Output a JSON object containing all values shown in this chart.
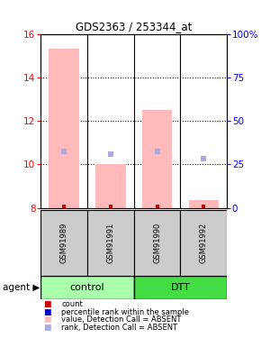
{
  "title": "GDS2363 / 253344_at",
  "samples": [
    "GSM91989",
    "GSM91991",
    "GSM91990",
    "GSM91992"
  ],
  "bar_color_absent": "#ffbbbb",
  "rank_color_absent": "#aaaadd",
  "count_color": "#cc0000",
  "rank_color": "#0000cc",
  "ylim_left": [
    8,
    16
  ],
  "ylim_right": [
    0,
    100
  ],
  "yticks_left": [
    8,
    10,
    12,
    14,
    16
  ],
  "yticks_right": [
    0,
    25,
    50,
    75,
    100
  ],
  "ytick_labels_right": [
    "0",
    "25",
    "50",
    "75",
    "100%"
  ],
  "bar_tops_absent": [
    15.3,
    10.0,
    12.5,
    8.35
  ],
  "rank_values_absent": [
    10.6,
    10.45,
    10.6,
    10.25
  ],
  "count_values": [
    8.08,
    8.08,
    8.08,
    8.08
  ],
  "sample_col_color": "#cccccc",
  "group_info": [
    {
      "start": 0,
      "end": 2,
      "label": "control",
      "color": "#aaffaa"
    },
    {
      "start": 2,
      "end": 4,
      "label": "DTT",
      "color": "#44dd44"
    }
  ],
  "legend_items": [
    {
      "color": "#cc0000",
      "label": "count"
    },
    {
      "color": "#0000cc",
      "label": "percentile rank within the sample"
    },
    {
      "color": "#ffbbbb",
      "label": "value, Detection Call = ABSENT"
    },
    {
      "color": "#aaaadd",
      "label": "rank, Detection Call = ABSENT"
    }
  ]
}
